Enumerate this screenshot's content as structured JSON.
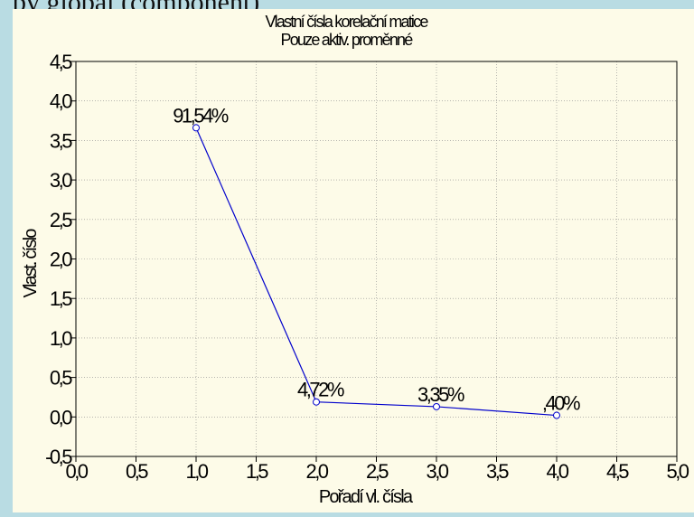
{
  "top_text": "by global (component)",
  "chart_data": {
    "type": "line",
    "title": "Vlastní čísla korelační matice",
    "subtitle": "Pouze aktiv. proměnné",
    "xlabel": "Pořadí vl. čísla",
    "ylabel": "Vlast. číslo",
    "xlim": [
      0.0,
      5.0
    ],
    "ylim": [
      -0.5,
      4.5
    ],
    "x_ticks": [
      "0,0",
      "0,5",
      "1,0",
      "1,5",
      "2,0",
      "2,5",
      "3,0",
      "3,5",
      "4,0",
      "4,5",
      "5,0"
    ],
    "y_ticks": [
      "-0,5",
      "0,0",
      "0,5",
      "1,0",
      "1,5",
      "2,0",
      "2,5",
      "3,0",
      "3,5",
      "4,0",
      "4,5"
    ],
    "grid": true,
    "series": [
      {
        "x": [
          1,
          2,
          3,
          4
        ],
        "y": [
          3.66,
          0.19,
          0.13,
          0.02
        ],
        "labels": [
          "91,54%",
          "4,72%",
          "3,35%",
          ",40%"
        ],
        "color": "#0000cc"
      }
    ]
  }
}
